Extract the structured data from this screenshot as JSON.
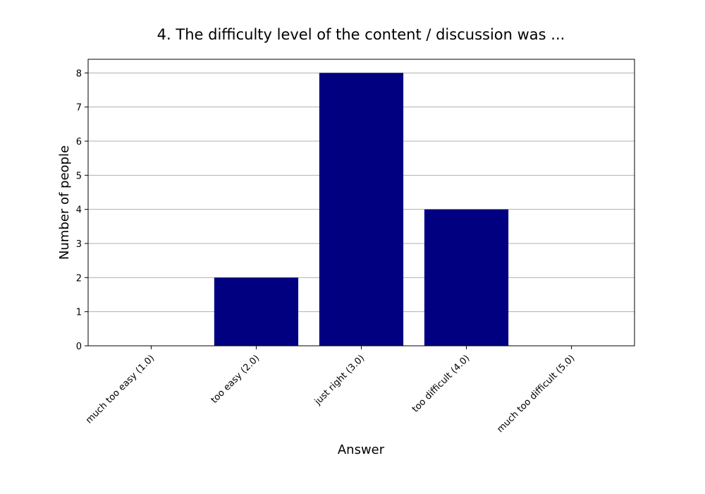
{
  "chart_data": {
    "type": "bar",
    "title": "4. The difficulty level of the content / discussion was ...",
    "xlabel": "Answer",
    "ylabel": "Number of people",
    "categories": [
      "much too easy (1.0)",
      "too easy (2.0)",
      "just right (3.0)",
      "too difficult (4.0)",
      "much too difficult (5.0)"
    ],
    "values": [
      0,
      2,
      8,
      4,
      0
    ],
    "ylim": [
      0,
      8.4
    ],
    "yticks": [
      0,
      1,
      2,
      3,
      4,
      5,
      6,
      7,
      8
    ],
    "grid": "horizontal",
    "legend": "none",
    "bar_color": "#000080"
  }
}
